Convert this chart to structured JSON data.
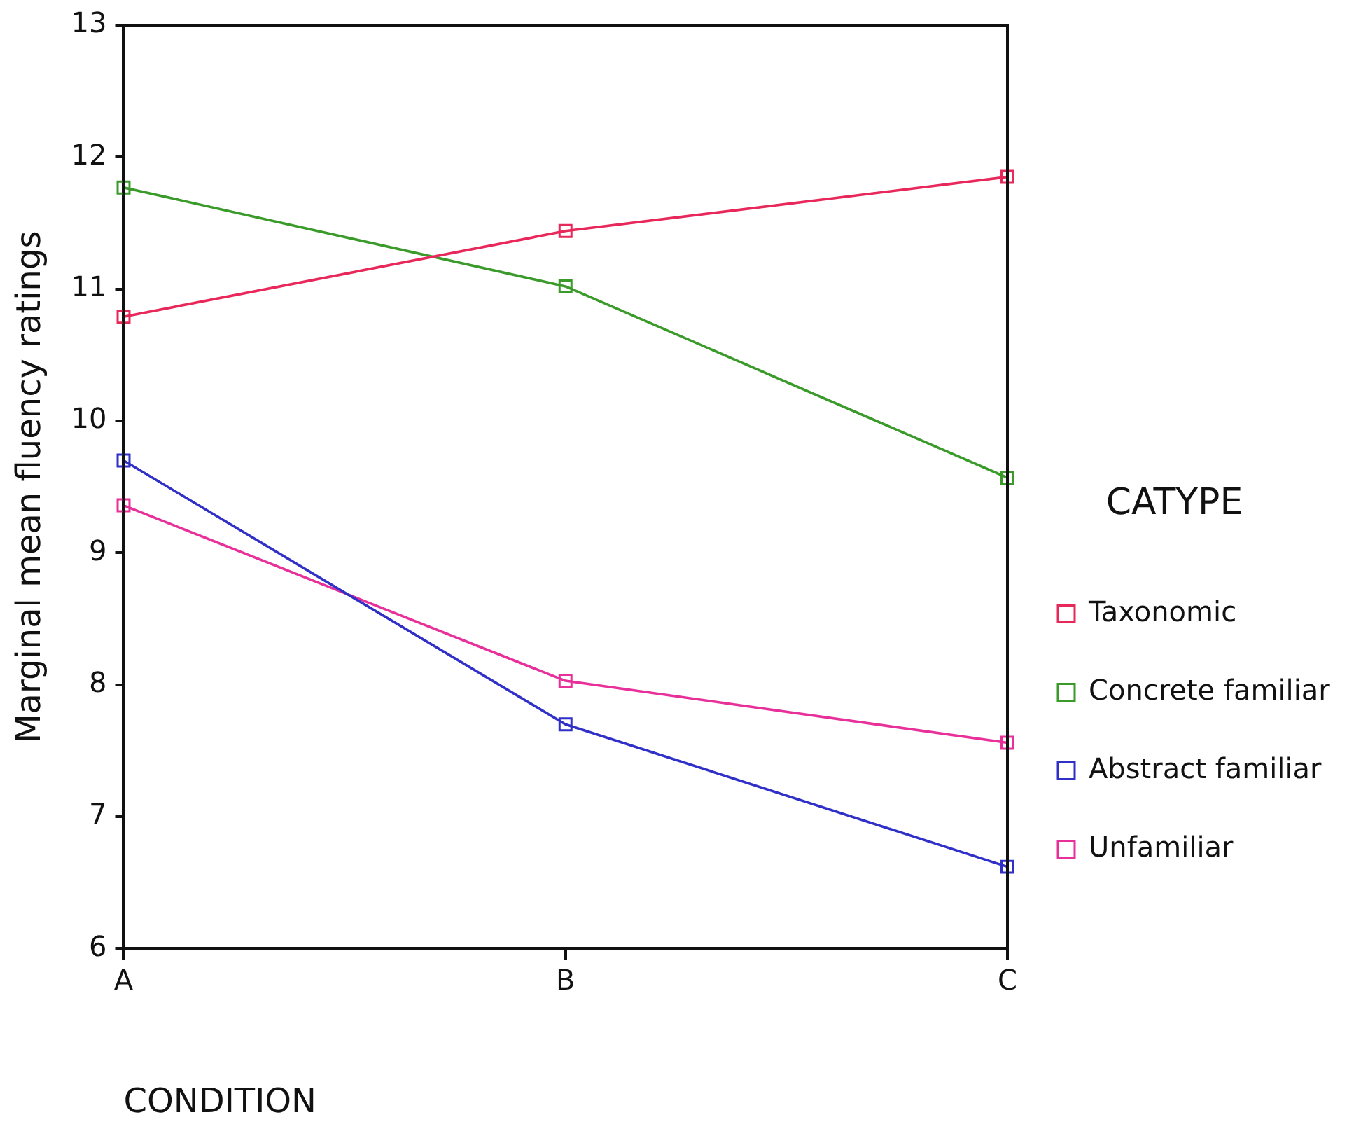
{
  "chart_data": {
    "type": "line",
    "xlabel": "CONDITION",
    "ylabel": "Marginal mean fluency ratings",
    "legend_title": "CATYPE",
    "legend": "right",
    "marker": "square",
    "grid": false,
    "categories": [
      "A",
      "B",
      "C"
    ],
    "ylim": [
      6,
      13
    ],
    "yticks": [
      6,
      7,
      8,
      9,
      10,
      11,
      12,
      13
    ],
    "series": [
      {
        "name": "Taxonomic",
        "color": "#e8285a",
        "values": [
          10.79,
          11.44,
          11.85
        ]
      },
      {
        "name": "Concrete familiar",
        "color": "#3a9a2a",
        "values": [
          11.77,
          11.02,
          9.57
        ]
      },
      {
        "name": "Abstract familiar",
        "color": "#3030c8",
        "values": [
          9.7,
          7.7,
          6.62
        ]
      },
      {
        "name": "Unfamiliar",
        "color": "#e8309a",
        "values": [
          9.36,
          8.03,
          7.56
        ]
      }
    ]
  }
}
